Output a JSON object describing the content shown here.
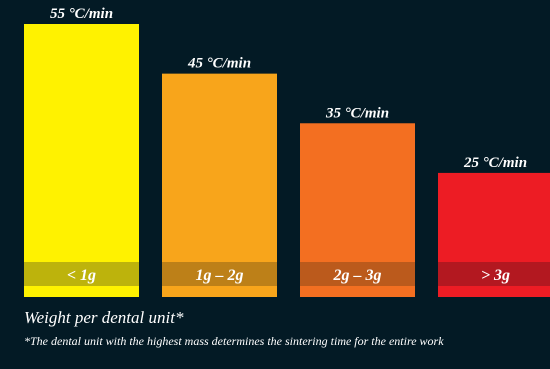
{
  "chart_data": {
    "type": "bar",
    "title": "",
    "xlabel": "Weight per dental unit*",
    "ylabel": "",
    "unit": "°C/min",
    "categories": [
      "< 1g",
      "1g – 2g",
      "2g – 3g",
      "> 3g"
    ],
    "values": [
      55,
      45,
      35,
      25
    ],
    "value_labels": [
      "55 °C/min",
      "45 °C/min",
      "35 °C/min",
      "25 °C/min"
    ],
    "colors": [
      "#fff200",
      "#f8a51b",
      "#f36f21",
      "#ed1c24"
    ],
    "band_colors": [
      "#bdb30c",
      "#bd8018",
      "#bb5a1c",
      "#b31820"
    ],
    "ylim": [
      0,
      55
    ],
    "grid": false,
    "legend": "none"
  },
  "footnote": "*The dental unit with the highest mass determines the sintering time for the entire work"
}
